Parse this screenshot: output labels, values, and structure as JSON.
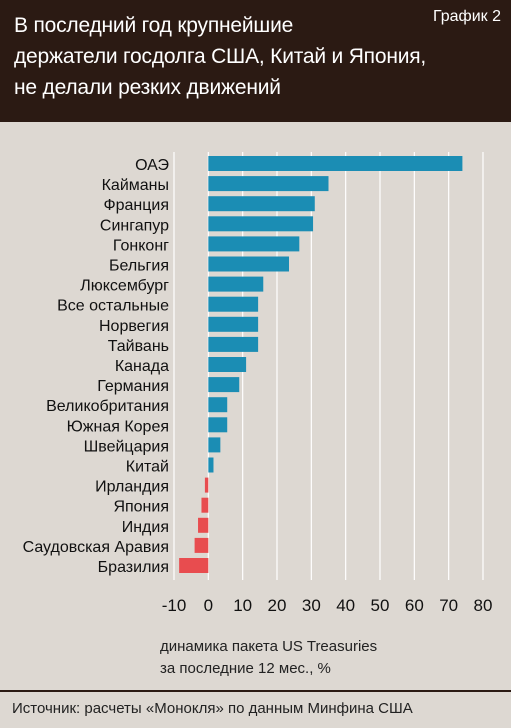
{
  "header": {
    "title_lines": [
      "В последний год крупнейшие",
      "держатели госдолга США, Китай и Япония,",
      "не делали резких движений"
    ],
    "tag": "График 2"
  },
  "colors": {
    "header_bg": "#2b1a13",
    "background": "#ddd8d2",
    "positive": "#1b8db4",
    "negative": "#e84c4f",
    "gridline": "#ffffff"
  },
  "chart_data": {
    "type": "bar",
    "orientation": "horizontal",
    "categories": [
      "ОАЭ",
      "Кайманы",
      "Франция",
      "Сингапур",
      "Гонконг",
      "Бельгия",
      "Люксембург",
      "Все остальные",
      "Норвегия",
      "Тайвань",
      "Канада",
      "Германия",
      "Великобритания",
      "Южная Корея",
      "Швейцария",
      "Китай",
      "Ирландия",
      "Япония",
      "Индия",
      "Саудовская Аравия",
      "Бразилия"
    ],
    "values": [
      74,
      35,
      31,
      30.5,
      26.5,
      23.5,
      16,
      14.5,
      14.5,
      14.5,
      11,
      9,
      5.5,
      5.5,
      3.5,
      1.5,
      -1,
      -2,
      -3,
      -4,
      -8.5
    ],
    "xlim": [
      -10,
      80
    ],
    "xticks": [
      "-10",
      "0",
      "10",
      "20",
      "30",
      "40",
      "50",
      "60",
      "70",
      "80"
    ],
    "grid": true,
    "xlabel_lines": [
      "динамика пакета US Treasuries",
      "за последние 12 мес., %"
    ]
  },
  "footer": {
    "source": "Источник: расчеты «Монокля» по данным Минфина США"
  }
}
